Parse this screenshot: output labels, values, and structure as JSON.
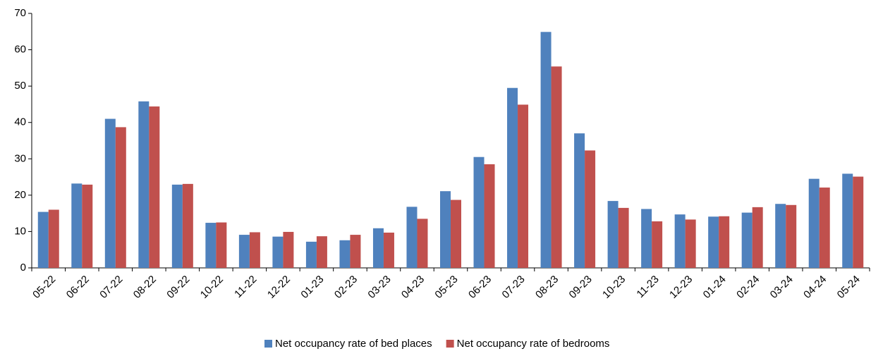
{
  "chart_data": {
    "type": "bar",
    "categories": [
      "05-22",
      "06-22",
      "07-22",
      "08-22",
      "09-22",
      "10-22",
      "11-22",
      "12-22",
      "01-23",
      "02-23",
      "03-23",
      "04-23",
      "05-23",
      "06-23",
      "07-23",
      "08-23",
      "09-23",
      "10-23",
      "11-23",
      "12-23",
      "01-24",
      "02-24",
      "03-24",
      "04-24",
      "05-24"
    ],
    "series": [
      {
        "name": "Net occupancy rate of bed places",
        "color": "#4f81bd",
        "values": [
          15.4,
          23.2,
          41.0,
          45.8,
          22.9,
          12.4,
          9.1,
          8.6,
          7.2,
          7.6,
          10.9,
          16.8,
          21.1,
          30.5,
          49.5,
          64.9,
          37.0,
          18.4,
          16.2,
          14.7,
          14.1,
          15.2,
          17.6,
          24.5,
          25.9
        ]
      },
      {
        "name": "Net occupancy rate of bedrooms",
        "color": "#c0504d",
        "values": [
          16.0,
          22.9,
          38.7,
          44.4,
          23.1,
          12.5,
          9.8,
          9.9,
          8.7,
          9.1,
          9.7,
          13.5,
          18.7,
          28.5,
          44.9,
          55.4,
          32.3,
          16.5,
          12.8,
          13.3,
          14.2,
          16.7,
          17.3,
          22.1,
          25.1
        ]
      }
    ],
    "ylim": [
      0,
      70
    ],
    "yticks": [
      0,
      10,
      20,
      30,
      40,
      50,
      60,
      70
    ],
    "grid": false,
    "legend": "bottom"
  }
}
